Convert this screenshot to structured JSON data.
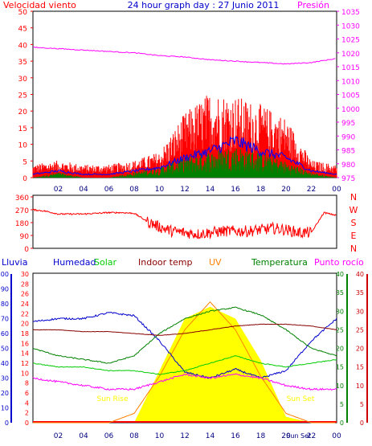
{
  "header": {
    "wind_title": "Velocidad viento",
    "center_title": "24 hour graph day : 27 Junio 2011",
    "pressure_title": "Presión"
  },
  "legend": {
    "lluvia": "Lluvia",
    "humedad": "Humedad",
    "solar": "Solar",
    "indoor": "Indoor temp",
    "uv": "UV",
    "temperatura": "Temperatura",
    "punto_rocio": "Punto rocío"
  },
  "annotations": {
    "sunrise": "Sun Rise",
    "sunset": "Sun Set"
  },
  "colors": {
    "wind": "#ff0000",
    "pressure": "#ff00ff",
    "humidity": "#0000cc",
    "solar": "#00cc00",
    "indoor": "#880000",
    "uv": "#ff8000",
    "temperature": "#008000",
    "dewpoint": "#ff00ff",
    "rain": "#0000cc",
    "solar_fill": "#ffff00",
    "gust_green": "#008000",
    "avg_blue": "#0000ff"
  },
  "chart_data": [
    {
      "type": "line",
      "name": "wind-pressure",
      "title": "24 hour graph day : 27 Junio 2011",
      "x_ticks": [
        "02",
        "04",
        "06",
        "08",
        "10",
        "12",
        "14",
        "16",
        "18",
        "20",
        "22",
        "00"
      ],
      "left_axis": {
        "label": "Velocidad viento",
        "ticks": [
          0,
          5,
          10,
          15,
          20,
          25,
          30,
          35,
          40,
          45,
          50
        ],
        "ylim": [
          0,
          50
        ]
      },
      "right_axis": {
        "label": "Presión",
        "ticks": [
          975,
          980,
          985,
          990,
          995,
          1000,
          1005,
          1010,
          1015,
          1020,
          1025,
          1030,
          1035
        ],
        "ylim": [
          975,
          1035
        ]
      },
      "x_hours": [
        0,
        2,
        4,
        6,
        8,
        10,
        12,
        14,
        16,
        18,
        20,
        22,
        24
      ],
      "series": [
        {
          "name": "gust",
          "y": [
            3,
            4,
            3,
            3,
            4,
            6,
            15,
            20,
            19,
            17,
            14,
            4,
            3
          ]
        },
        {
          "name": "average",
          "y": [
            1,
            2,
            1,
            1,
            2,
            3,
            6,
            8,
            11,
            8,
            6,
            2,
            1
          ]
        },
        {
          "name": "low",
          "y": [
            0,
            1,
            0,
            0,
            1,
            2,
            4,
            5,
            6,
            5,
            3,
            1,
            0
          ]
        },
        {
          "name": "Presión",
          "y": [
            1022,
            1021.5,
            1021,
            1020.5,
            1020,
            1019,
            1018.5,
            1017.5,
            1017,
            1016.5,
            1016,
            1016.5,
            1018
          ]
        }
      ]
    },
    {
      "type": "line",
      "name": "wind-direction",
      "y_ticks": [
        0,
        90,
        180,
        270,
        360
      ],
      "ylim": [
        0,
        360
      ],
      "right_labels": [
        "N",
        "W",
        "S",
        "E",
        "N"
      ],
      "x_hours": [
        0,
        1,
        2,
        3,
        4,
        5,
        6,
        7,
        8,
        9,
        10,
        11,
        12,
        13,
        14,
        15,
        16,
        17,
        18,
        19,
        20,
        21,
        22,
        23,
        24
      ],
      "y": [
        270,
        260,
        240,
        240,
        240,
        245,
        250,
        250,
        245,
        190,
        150,
        120,
        110,
        100,
        110,
        120,
        120,
        120,
        130,
        140,
        130,
        110,
        110,
        250,
        230
      ]
    },
    {
      "type": "line",
      "name": "temperature-humidity-solar",
      "x_ticks": [
        "02",
        "04",
        "06",
        "08",
        "10",
        "12",
        "14",
        "16",
        "18",
        "20",
        "Sun Set",
        "22",
        "00"
      ],
      "lluvia_axis": [
        0,
        10,
        20,
        30,
        40,
        50,
        60,
        70,
        80,
        90,
        100
      ],
      "humedad_axis": [
        0,
        2,
        4,
        6,
        8,
        10,
        12,
        14,
        16,
        18,
        20,
        22,
        24,
        26,
        28,
        30
      ],
      "right_temp_axis": [
        0,
        5,
        10,
        15,
        20,
        25,
        30,
        35,
        40
      ],
      "right_dew_axis": [
        0,
        5,
        10,
        15,
        20,
        25,
        30,
        35,
        40
      ],
      "x_hours": [
        0,
        2,
        4,
        6,
        8,
        10,
        12,
        14,
        16,
        18,
        20,
        22,
        24
      ],
      "series": [
        {
          "name": "Humedad",
          "y": [
            68,
            70,
            70,
            74,
            72,
            55,
            34,
            30,
            36,
            30,
            35,
            55,
            70
          ]
        },
        {
          "name": "Temperatura",
          "y": [
            20,
            18,
            17,
            16,
            18,
            24,
            28,
            30,
            31,
            29,
            25,
            20,
            18
          ]
        },
        {
          "name": "Indoor temp",
          "y": [
            25,
            25,
            24.5,
            24.5,
            24,
            23.5,
            24,
            25,
            26,
            26.5,
            26.5,
            26,
            25
          ]
        },
        {
          "name": "Solar",
          "y": [
            16,
            15,
            15,
            14,
            14,
            13,
            14,
            16,
            18,
            16,
            15,
            16,
            17
          ]
        },
        {
          "name": "Punto rocío",
          "y": [
            12,
            11,
            10,
            9,
            9,
            11,
            13,
            12,
            13,
            12,
            10,
            9,
            9
          ]
        },
        {
          "name": "UV",
          "y": [
            0,
            0,
            0,
            0,
            1,
            5,
            10,
            13,
            10,
            5,
            1,
            0,
            0
          ]
        },
        {
          "name": "Solar radiation",
          "y": [
            0,
            0,
            0,
            0,
            0,
            350,
            700,
            780,
            700,
            420,
            40,
            0,
            0
          ]
        }
      ]
    }
  ]
}
